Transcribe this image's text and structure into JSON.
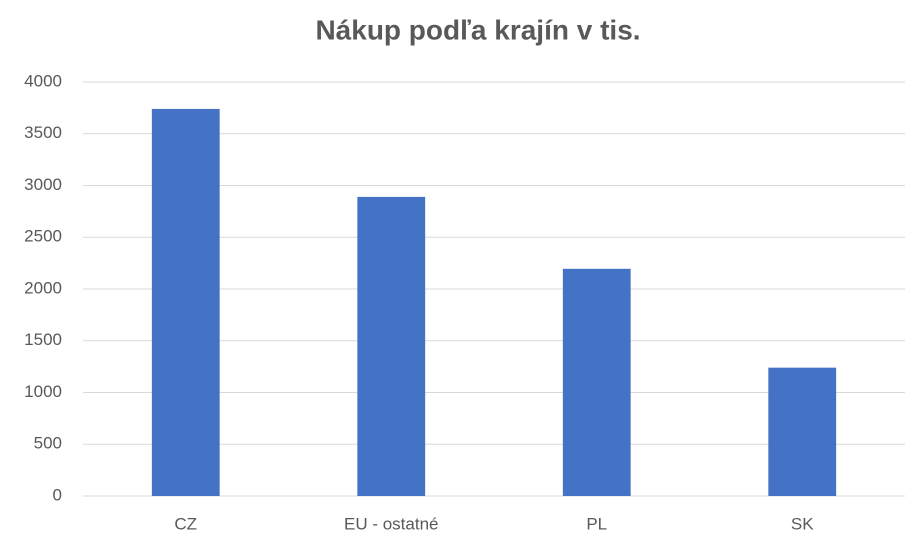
{
  "chart_data": {
    "type": "bar",
    "title": "Nákup podľa krajín v tis.",
    "categories": [
      "CZ",
      "EU - ostatné",
      "PL",
      "SK"
    ],
    "values": [
      3740,
      2890,
      2195,
      1240
    ],
    "color": "#4472c4",
    "ylim": [
      0,
      4000
    ],
    "yticks": [
      0,
      500,
      1000,
      1500,
      2000,
      2500,
      3000,
      3500,
      4000
    ],
    "grid": true
  }
}
